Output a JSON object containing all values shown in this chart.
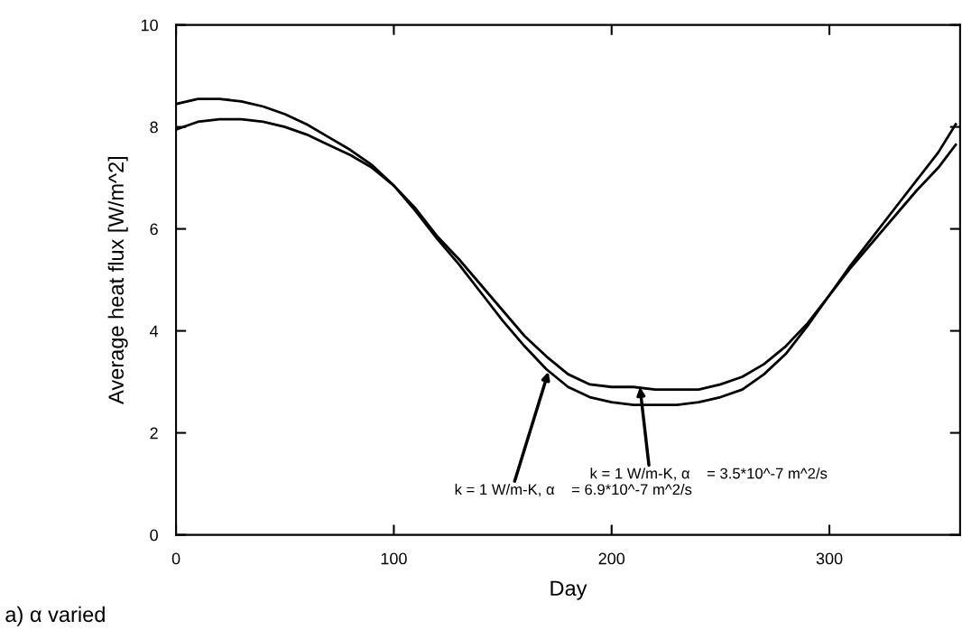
{
  "chart_data": {
    "type": "line",
    "xlabel": "Day",
    "ylabel": "Average heat flux [W/m^2]",
    "xlim": [
      0,
      360
    ],
    "ylim": [
      0,
      10
    ],
    "xticks": [
      0,
      100,
      200,
      300
    ],
    "yticks": [
      0,
      2,
      4,
      6,
      8,
      10
    ],
    "grid": false,
    "legend": false,
    "marker": "none",
    "line_style": "solid",
    "x": [
      0,
      10,
      20,
      30,
      40,
      50,
      60,
      70,
      80,
      90,
      100,
      110,
      120,
      130,
      140,
      150,
      160,
      170,
      180,
      190,
      200,
      210,
      220,
      230,
      240,
      250,
      260,
      270,
      280,
      290,
      300,
      310,
      320,
      330,
      340,
      350,
      358
    ],
    "series": [
      {
        "color": "#000000",
        "values": [
          8.45,
          8.55,
          8.55,
          8.5,
          8.4,
          8.25,
          8.05,
          7.8,
          7.55,
          7.25,
          6.85,
          6.35,
          5.8,
          5.3,
          4.75,
          4.2,
          3.7,
          3.25,
          2.9,
          2.7,
          2.6,
          2.55,
          2.55,
          2.55,
          2.6,
          2.7,
          2.85,
          3.15,
          3.55,
          4.1,
          4.7,
          5.3,
          5.85,
          6.4,
          6.95,
          7.5,
          8.05
        ]
      },
      {
        "color": "#000000",
        "values": [
          7.95,
          8.1,
          8.15,
          8.15,
          8.1,
          8.0,
          7.85,
          7.65,
          7.45,
          7.2,
          6.85,
          6.4,
          5.85,
          5.4,
          4.9,
          4.4,
          3.9,
          3.5,
          3.15,
          2.95,
          2.9,
          2.9,
          2.85,
          2.85,
          2.85,
          2.95,
          3.1,
          3.35,
          3.7,
          4.15,
          4.7,
          5.25,
          5.75,
          6.25,
          6.75,
          7.2,
          7.65
        ]
      }
    ],
    "annotations": [
      {
        "text": "k = 1 W/m-K, α    = 6.9*10^-7 m^2/s",
        "x": 171,
        "y": 3.2
      },
      {
        "text": "k = 1 W/m-K, α    = 3.5*10^-7 m^2/s",
        "x": 213,
        "y": 2.9
      },
      "a) α varied"
    ]
  }
}
